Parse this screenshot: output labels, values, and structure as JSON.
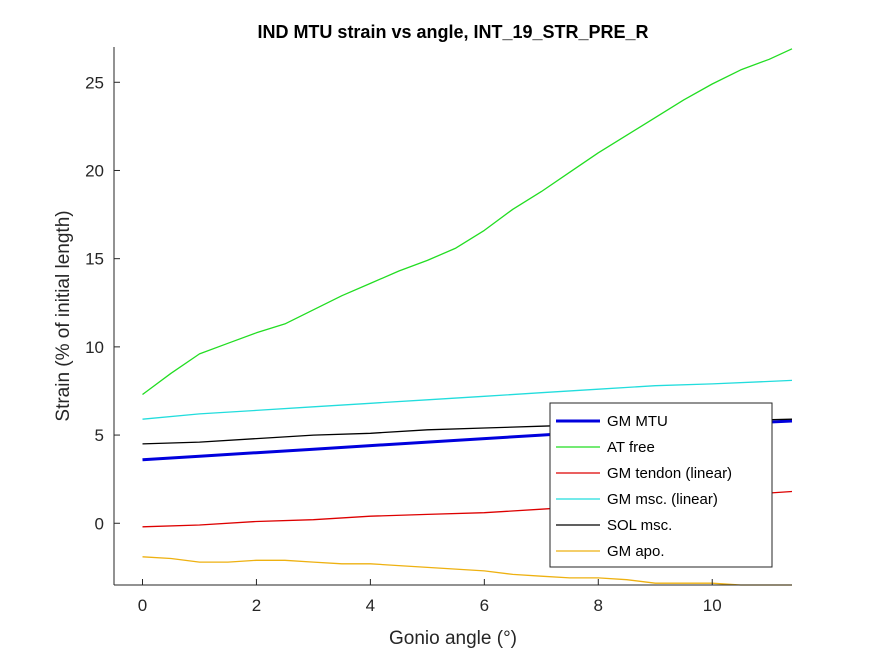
{
  "chart_data": {
    "type": "line",
    "title": "IND MTU strain vs angle, INT_19_STR_PRE_R",
    "xlabel": "Gonio angle (°)",
    "ylabel": "Strain (% of initial length)",
    "xlim": [
      -0.5,
      11.4
    ],
    "ylim": [
      -3.5,
      27.0
    ],
    "xticks": [
      0,
      2,
      4,
      6,
      8,
      10
    ],
    "yticks": [
      0,
      5,
      10,
      15,
      20,
      25
    ],
    "legend_position": "lower-right inside",
    "grid": false,
    "series": [
      {
        "name": "GM MTU",
        "color": "#0000dd",
        "width": 3,
        "x": [
          0,
          1,
          2,
          3,
          4,
          5,
          6,
          7,
          8,
          9,
          10,
          11.4
        ],
        "y": [
          3.6,
          3.8,
          4.0,
          4.2,
          4.4,
          4.6,
          4.8,
          5.0,
          5.2,
          5.4,
          5.6,
          5.8
        ]
      },
      {
        "name": "AT free",
        "color": "#22dd22",
        "width": 1.3,
        "x": [
          0,
          0.5,
          1.0,
          1.5,
          2.0,
          2.5,
          3.0,
          3.5,
          4.0,
          4.5,
          5.0,
          5.5,
          6.0,
          6.5,
          7.0,
          7.5,
          8.0,
          8.5,
          9.0,
          9.5,
          10.0,
          10.5,
          11.0,
          11.4
        ],
        "y": [
          7.3,
          8.5,
          9.6,
          10.2,
          10.8,
          11.3,
          12.1,
          12.9,
          13.6,
          14.3,
          14.9,
          15.6,
          16.6,
          17.8,
          18.8,
          19.9,
          21.0,
          22.0,
          23.0,
          24.0,
          24.9,
          25.7,
          26.3,
          26.9
        ]
      },
      {
        "name": "GM tendon (linear)",
        "color": "#dd0000",
        "width": 1.3,
        "x": [
          0,
          1,
          2,
          3,
          4,
          5,
          6,
          7,
          8,
          9,
          10,
          11.4
        ],
        "y": [
          -0.2,
          -0.1,
          0.1,
          0.2,
          0.4,
          0.5,
          0.6,
          0.8,
          1.0,
          1.3,
          1.5,
          1.8
        ]
      },
      {
        "name": "GM msc. (linear)",
        "color": "#22dddd",
        "width": 1.3,
        "x": [
          0,
          1,
          2,
          3,
          4,
          5,
          6,
          7,
          8,
          9,
          10,
          11.4
        ],
        "y": [
          5.9,
          6.2,
          6.4,
          6.6,
          6.8,
          7.0,
          7.2,
          7.4,
          7.6,
          7.8,
          7.9,
          8.1
        ]
      },
      {
        "name": "SOL msc.",
        "color": "#000000",
        "width": 1.3,
        "x": [
          0,
          1,
          2,
          3,
          4,
          5,
          6,
          7,
          8,
          9,
          10,
          11.4
        ],
        "y": [
          4.5,
          4.6,
          4.8,
          5.0,
          5.1,
          5.3,
          5.4,
          5.5,
          5.6,
          5.7,
          5.8,
          5.9
        ]
      },
      {
        "name": "GM apo.",
        "color": "#eeb111",
        "width": 1.3,
        "x": [
          0,
          0.5,
          1.0,
          1.5,
          2.0,
          2.5,
          3.0,
          3.5,
          4.0,
          4.5,
          5.0,
          5.5,
          6.0,
          6.5,
          7.0,
          7.5,
          8.0,
          8.5,
          9.0,
          9.5,
          10.0,
          10.5,
          11.0,
          11.4
        ],
        "y": [
          -1.9,
          -2.0,
          -2.2,
          -2.2,
          -2.1,
          -2.1,
          -2.2,
          -2.3,
          -2.3,
          -2.4,
          -2.5,
          -2.6,
          -2.7,
          -2.9,
          -3.0,
          -3.1,
          -3.1,
          -3.2,
          -3.4,
          -3.4,
          -3.4,
          -3.5,
          -3.5,
          -3.5
        ]
      }
    ]
  }
}
